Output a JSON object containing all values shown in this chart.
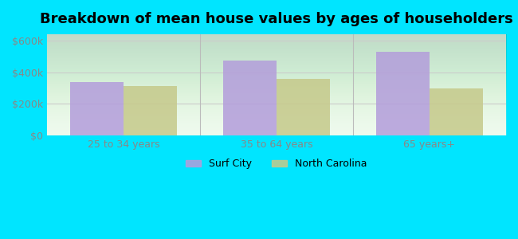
{
  "title": "Breakdown of mean house values by ages of householders",
  "categories": [
    "25 to 34 years",
    "35 to 64 years",
    "65 years+"
  ],
  "surf_city_values": [
    340000,
    475000,
    530000
  ],
  "north_carolina_values": [
    315000,
    360000,
    298000
  ],
  "surf_city_color": "#b39ddb",
  "north_carolina_color": "#c5c98a",
  "ylim": [
    0,
    640000
  ],
  "yticks": [
    0,
    200000,
    400000,
    600000
  ],
  "ytick_labels": [
    "$0",
    "$200k",
    "$400k",
    "$600k"
  ],
  "legend_surf_city": "Surf City",
  "legend_nc": "North Carolina",
  "bar_width": 0.35,
  "title_fontsize": 13,
  "outer_bg": "#00e5ff",
  "plot_bg": "#edfaed"
}
